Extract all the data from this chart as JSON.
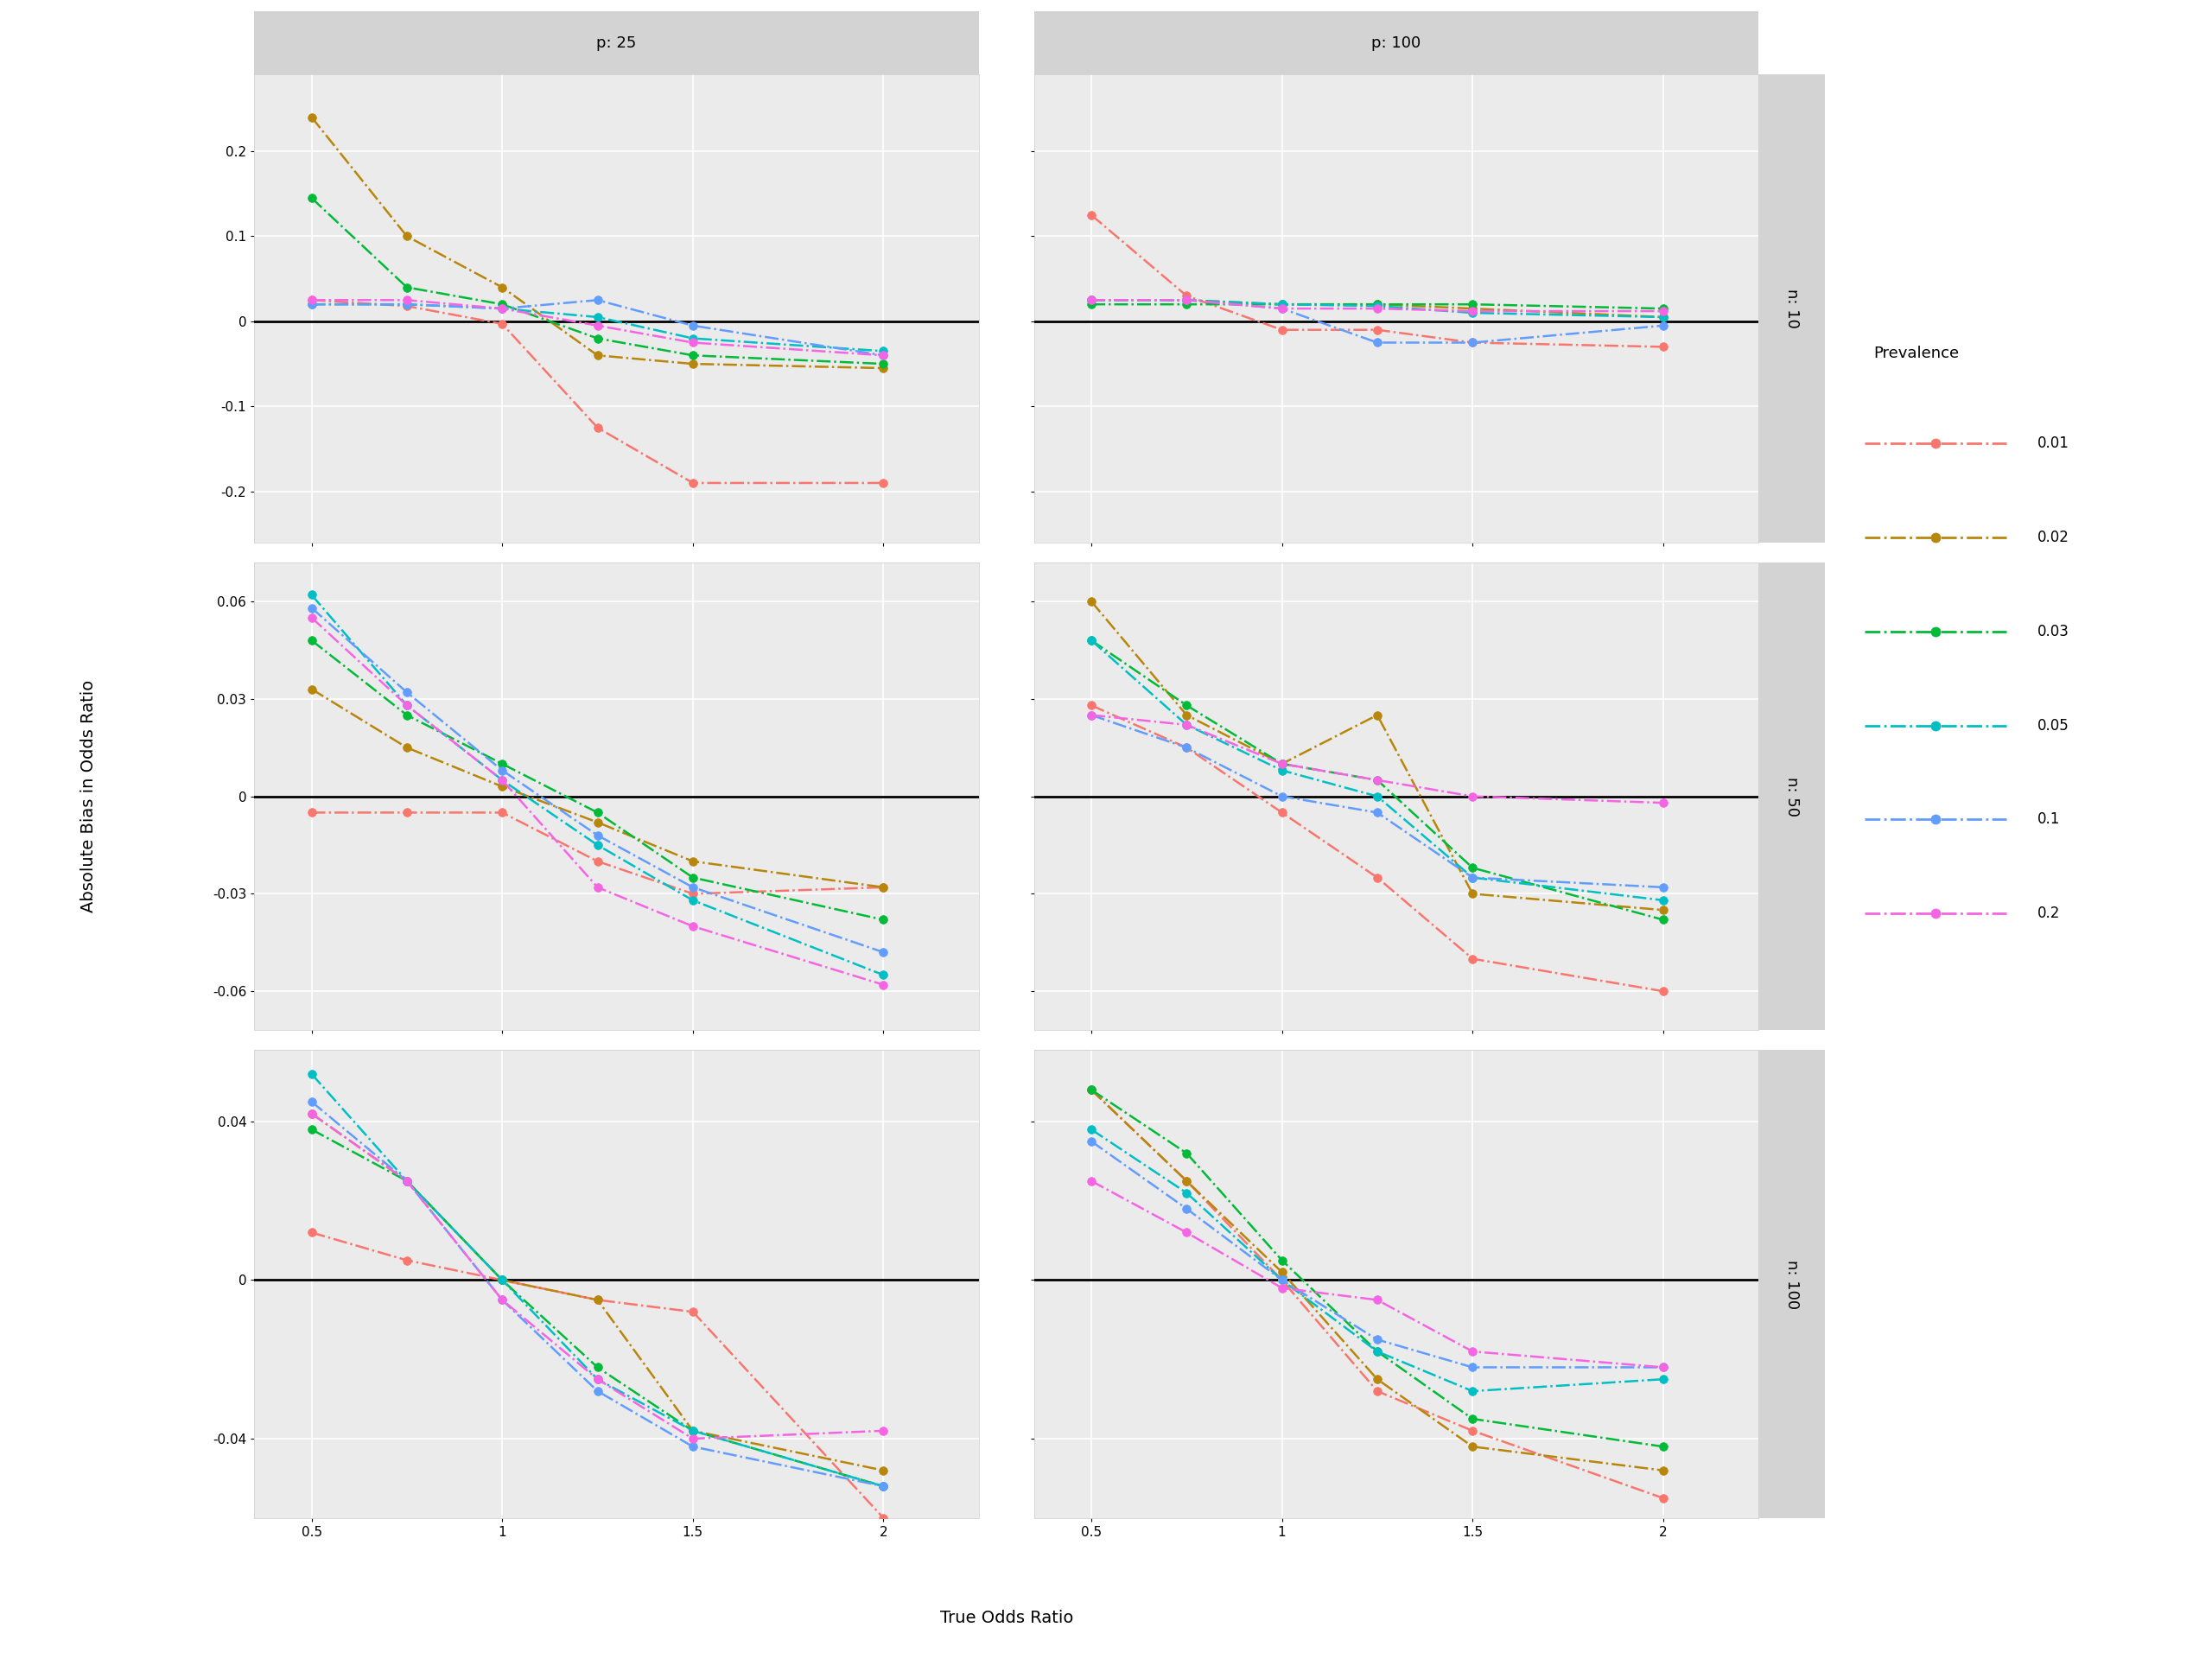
{
  "x_values": [
    0.5,
    0.75,
    1.0,
    1.25,
    1.5,
    2.0
  ],
  "prevalences": [
    "0.01",
    "0.02",
    "0.03",
    "0.05",
    "0.1",
    "0.2"
  ],
  "colors": {
    "0.01": "#F8766D",
    "0.02": "#B8860B",
    "0.03": "#00BA38",
    "0.05": "#00BFC4",
    "0.1": "#619CFF",
    "0.2": "#F564E3"
  },
  "p_values": [
    25,
    100
  ],
  "n_values": [
    10,
    50,
    100
  ],
  "data": {
    "p25_n10": {
      "0.01": [
        0.025,
        0.018,
        -0.003,
        -0.125,
        -0.19,
        -0.19
      ],
      "0.02": [
        0.24,
        0.1,
        0.04,
        -0.04,
        -0.05,
        -0.055
      ],
      "0.03": [
        0.145,
        0.04,
        0.02,
        -0.02,
        -0.04,
        -0.05
      ],
      "0.05": [
        0.02,
        0.02,
        0.015,
        0.005,
        -0.02,
        -0.035
      ],
      "0.1": [
        0.02,
        0.02,
        0.015,
        0.025,
        -0.005,
        -0.04
      ],
      "0.2": [
        0.025,
        0.025,
        0.015,
        -0.005,
        -0.025,
        -0.04
      ]
    },
    "p100_n10": {
      "0.01": [
        0.125,
        0.03,
        -0.01,
        -0.01,
        -0.025,
        -0.03
      ],
      "0.02": [
        0.025,
        0.025,
        0.02,
        0.02,
        0.015,
        0.005
      ],
      "0.03": [
        0.02,
        0.02,
        0.02,
        0.02,
        0.02,
        0.015
      ],
      "0.05": [
        0.025,
        0.025,
        0.02,
        0.018,
        0.01,
        0.005
      ],
      "0.1": [
        0.025,
        0.025,
        0.015,
        -0.025,
        -0.025,
        -0.005
      ],
      "0.2": [
        0.025,
        0.025,
        0.015,
        0.015,
        0.012,
        0.012
      ]
    },
    "p25_n50": {
      "0.01": [
        -0.005,
        -0.005,
        -0.005,
        -0.02,
        -0.03,
        -0.028
      ],
      "0.02": [
        0.033,
        0.015,
        0.003,
        -0.008,
        -0.02,
        -0.028
      ],
      "0.03": [
        0.048,
        0.025,
        0.01,
        -0.005,
        -0.025,
        -0.038
      ],
      "0.05": [
        0.062,
        0.028,
        0.005,
        -0.015,
        -0.032,
        -0.055
      ],
      "0.1": [
        0.058,
        0.032,
        0.008,
        -0.012,
        -0.028,
        -0.048
      ],
      "0.2": [
        0.055,
        0.028,
        0.005,
        -0.028,
        -0.04,
        -0.058
      ]
    },
    "p100_n50": {
      "0.01": [
        0.028,
        0.015,
        -0.005,
        -0.025,
        -0.05,
        -0.06
      ],
      "0.02": [
        0.06,
        0.025,
        0.01,
        0.025,
        -0.03,
        -0.035
      ],
      "0.03": [
        0.048,
        0.028,
        0.01,
        0.005,
        -0.022,
        -0.038
      ],
      "0.05": [
        0.048,
        0.022,
        0.008,
        0.0,
        -0.025,
        -0.032
      ],
      "0.1": [
        0.025,
        0.015,
        0.0,
        -0.005,
        -0.025,
        -0.028
      ],
      "0.2": [
        0.025,
        0.022,
        0.01,
        0.005,
        0.0,
        -0.002
      ]
    },
    "p25_n100": {
      "0.01": [
        0.012,
        0.005,
        0.0,
        -0.005,
        -0.008,
        -0.06
      ],
      "0.02": [
        0.042,
        0.025,
        0.0,
        -0.005,
        -0.038,
        -0.048
      ],
      "0.03": [
        0.038,
        0.025,
        0.0,
        -0.022,
        -0.038,
        -0.052
      ],
      "0.05": [
        0.052,
        0.025,
        0.0,
        -0.025,
        -0.038,
        -0.052
      ],
      "0.1": [
        0.045,
        0.025,
        -0.005,
        -0.028,
        -0.042,
        -0.052
      ],
      "0.2": [
        0.042,
        0.025,
        -0.005,
        -0.025,
        -0.04,
        -0.038
      ]
    },
    "p100_n100": {
      "0.01": [
        0.048,
        0.025,
        0.0,
        -0.028,
        -0.038,
        -0.055
      ],
      "0.02": [
        0.048,
        0.025,
        0.002,
        -0.025,
        -0.042,
        -0.048
      ],
      "0.03": [
        0.048,
        0.032,
        0.005,
        -0.018,
        -0.035,
        -0.042
      ],
      "0.05": [
        0.038,
        0.022,
        0.0,
        -0.018,
        -0.028,
        -0.025
      ],
      "0.1": [
        0.035,
        0.018,
        0.0,
        -0.015,
        -0.022,
        -0.022
      ],
      "0.2": [
        0.025,
        0.012,
        -0.002,
        -0.005,
        -0.018,
        -0.022
      ]
    }
  },
  "ylims": {
    "n10": [
      -0.26,
      0.29
    ],
    "n50": [
      -0.072,
      0.072
    ],
    "n100": [
      -0.06,
      0.058
    ]
  },
  "yticks": {
    "n10": [
      -0.2,
      -0.1,
      0.0,
      0.1,
      0.2
    ],
    "n50": [
      -0.06,
      -0.03,
      0.0,
      0.03,
      0.06
    ],
    "n100": [
      -0.04,
      0.0,
      0.04
    ]
  },
  "panel_bg": "#EBEBEB",
  "strip_bg": "#D3D3D3",
  "fig_bg": "#FFFFFF",
  "grid_color": "#FFFFFF",
  "zero_line_color": "#000000",
  "title_fontsize": 13,
  "label_fontsize": 14,
  "tick_fontsize": 11,
  "legend_title_fontsize": 13,
  "legend_fontsize": 12
}
